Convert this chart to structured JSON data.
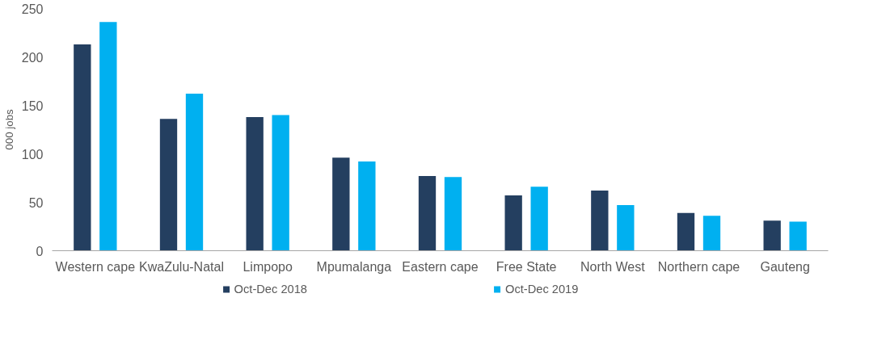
{
  "chart_data": {
    "type": "bar",
    "ylabel": "000 jobs",
    "categories": [
      "Western cape",
      "KwaZulu-Natal",
      "Limpopo",
      "Mpumalanga",
      "Eastern cape",
      "Free State",
      "North West",
      "Northern cape",
      "Gauteng"
    ],
    "series": [
      {
        "name": "Oct-Dec 2018",
        "color": "#243f60",
        "values": [
          213,
          136,
          138,
          96,
          77,
          57,
          62,
          39,
          31
        ]
      },
      {
        "name": "Oct-Dec 2019",
        "color": "#00b0f0",
        "values": [
          236,
          162,
          140,
          92,
          76,
          66,
          47,
          36,
          30
        ]
      }
    ],
    "ylim": [
      0,
      250
    ],
    "yticks": [
      0,
      50,
      100,
      150,
      200,
      250
    ],
    "grid": false,
    "legend": "bottom"
  }
}
